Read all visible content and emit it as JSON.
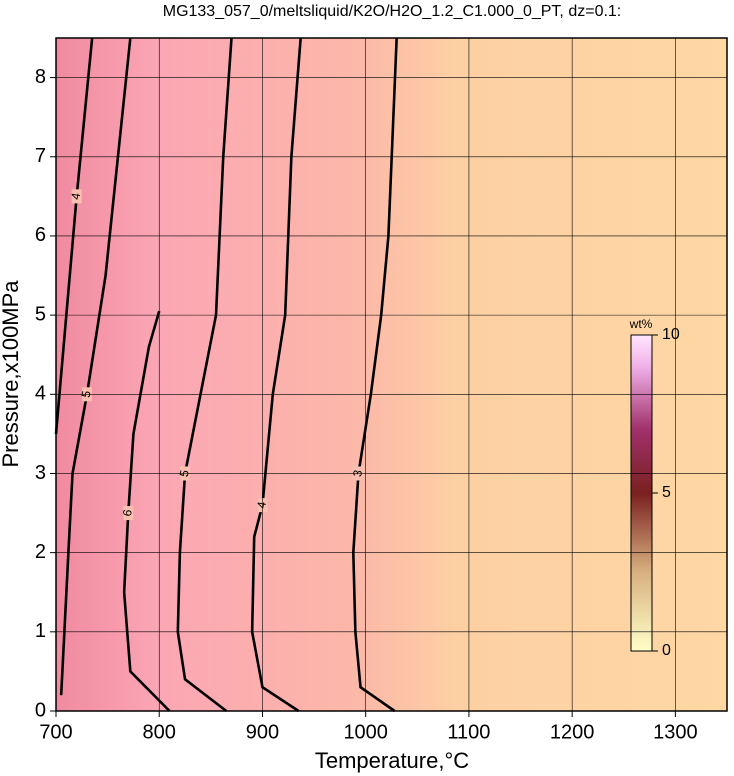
{
  "chart_data": {
    "type": "contour",
    "title": "MG133_057_0/meltsliquid/K2O/H2O_1.2_C1.000_0_PT, dz=0.1:",
    "x_label": "Temperature,°C",
    "y_label": "Pressure,x100MPa",
    "xlim": [
      700,
      1350
    ],
    "ylim": [
      0,
      8.5
    ],
    "xticks": [
      700,
      800,
      900,
      1000,
      1100,
      1200,
      1300
    ],
    "yticks": [
      0,
      1,
      2,
      3,
      4,
      5,
      6,
      7,
      8
    ],
    "grid": true,
    "contours": [
      {
        "level": 3,
        "x": [
          1028,
          995,
          990,
          988,
          993,
          1005,
          1015,
          1022,
          1030
        ],
        "y": [
          0,
          0.3,
          1,
          2,
          3,
          4,
          5,
          6,
          8.5
        ]
      },
      {
        "level": 4,
        "x": [
          935,
          900,
          890,
          892,
          900,
          910,
          922,
          928,
          937
        ],
        "y": [
          0,
          0.3,
          1,
          2.2,
          2.6,
          4,
          5,
          7,
          8.5
        ]
      },
      {
        "level": 5,
        "x": [
          865,
          825,
          818,
          820,
          825,
          840,
          855,
          862,
          870
        ],
        "y": [
          0,
          0.4,
          1,
          2,
          3,
          4,
          5,
          7,
          8.5
        ]
      },
      {
        "level": 6,
        "x": [
          810,
          772,
          766,
          770,
          775,
          790,
          800
        ],
        "y": [
          0,
          0.5,
          1.5,
          2.5,
          3.5,
          4.6,
          5.05
        ]
      },
      {
        "level": 5,
        "x": [
          705,
          712,
          716,
          730,
          748,
          772
        ],
        "y": [
          0.2,
          2,
          3,
          4,
          5.5,
          8.5
        ]
      },
      {
        "level": 4,
        "x": [
          700,
          710,
          720,
          735
        ],
        "y": [
          3.5,
          5,
          6.5,
          8.5
        ]
      }
    ],
    "colorbar": {
      "label": "wt%",
      "lim": [
        0,
        10
      ],
      "ticks": [
        0,
        5,
        10
      ]
    }
  }
}
